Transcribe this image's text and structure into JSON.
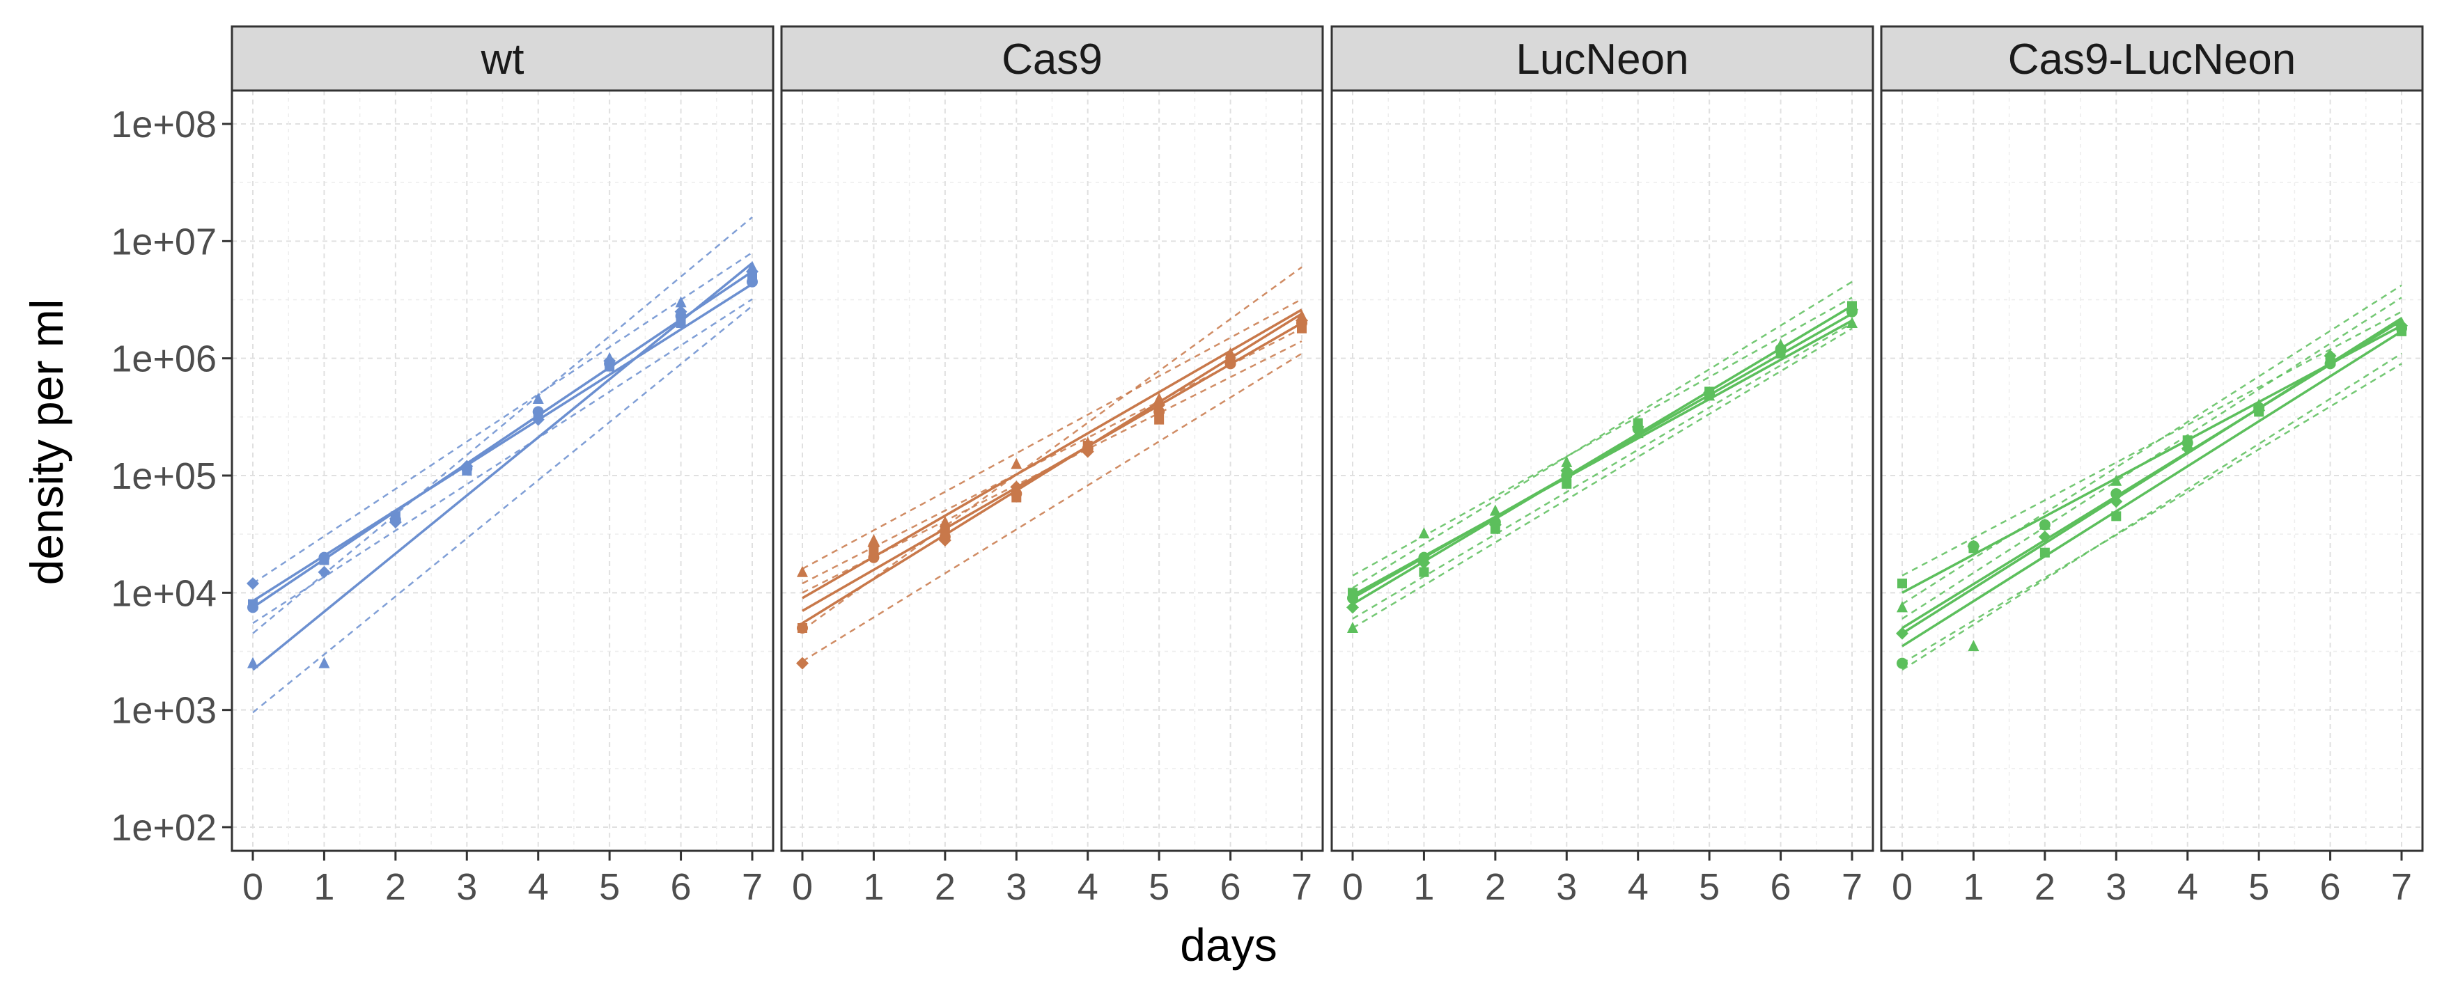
{
  "chart_data": {
    "type": "line",
    "layout": "faceted",
    "xlabel": "days",
    "ylabel": "density per ml",
    "y_scale": "log10",
    "ylim": [
      100,
      100000000
    ],
    "xlim": [
      0,
      7
    ],
    "x_ticks": [
      "0",
      "1",
      "2",
      "3",
      "4",
      "5",
      "6",
      "7"
    ],
    "y_ticks": [
      {
        "value": 100,
        "label": "1e+02"
      },
      {
        "value": 1000,
        "label": "1e+03"
      },
      {
        "value": 10000,
        "label": "1e+04"
      },
      {
        "value": 100000,
        "label": "1e+05"
      },
      {
        "value": 1000000,
        "label": "1e+06"
      },
      {
        "value": 10000000,
        "label": "1e+07"
      },
      {
        "value": 100000000,
        "label": "1e+08"
      }
    ],
    "grid": true,
    "legend": "none",
    "facets": [
      {
        "title": "wt",
        "color": "#6b8fd0",
        "series": [
          {
            "marker": "circle",
            "points": [
              [
                0,
                7500
              ],
              [
                1,
                20000
              ],
              [
                2,
                42000
              ],
              [
                3,
                115000
              ],
              [
                4,
                350000
              ],
              [
                5,
                900000
              ],
              [
                6,
                2300000
              ],
              [
                7,
                4500000
              ]
            ]
          },
          {
            "marker": "square",
            "points": [
              [
                0,
                8000
              ],
              [
                1,
                19000
              ],
              [
                2,
                45000
              ],
              [
                3,
                110000
              ],
              [
                4,
                320000
              ],
              [
                5,
                850000
              ],
              [
                6,
                2000000
              ],
              [
                7,
                5000000
              ]
            ]
          },
          {
            "marker": "triangle",
            "points": [
              [
                0,
                2500
              ],
              [
                1,
                2500
              ],
              [
                4,
                450000
              ],
              [
                5,
                1000000
              ],
              [
                6,
                3000000
              ],
              [
                7,
                6000000
              ]
            ]
          },
          {
            "marker": "diamond",
            "points": [
              [
                0,
                12000
              ],
              [
                1,
                15000
              ],
              [
                2,
                40000
              ],
              [
                3,
                120000
              ],
              [
                4,
                300000
              ],
              [
                5,
                950000
              ],
              [
                6,
                2500000
              ],
              [
                7,
                5500000
              ]
            ]
          }
        ],
        "fits": [
          [
            0,
            7500,
            7,
            5500000
          ],
          [
            0,
            8500,
            7,
            4300000
          ],
          [
            0,
            2200,
            7,
            6500000
          ]
        ],
        "bands": [
          [
            0,
            12000,
            7,
            8000000
          ],
          [
            0,
            5500,
            7,
            3200000
          ],
          [
            0,
            4500,
            7,
            16000000
          ],
          [
            0,
            950,
            7,
            2800000
          ]
        ]
      },
      {
        "title": "Cas9",
        "color": "#c8784a",
        "series": [
          {
            "marker": "circle",
            "points": [
              [
                0,
                5000
              ],
              [
                1,
                20000
              ],
              [
                2,
                30000
              ],
              [
                3,
                70000
              ],
              [
                4,
                170000
              ],
              [
                5,
                350000
              ],
              [
                6,
                900000
              ],
              [
                7,
                2000000
              ]
            ]
          },
          {
            "marker": "square",
            "points": [
              [
                0,
                5000
              ],
              [
                1,
                22000
              ],
              [
                2,
                35000
              ],
              [
                3,
                65000
              ],
              [
                4,
                180000
              ],
              [
                5,
                300000
              ],
              [
                6,
                1000000
              ],
              [
                7,
                1800000
              ]
            ]
          },
          {
            "marker": "triangle",
            "points": [
              [
                0,
                15000
              ],
              [
                1,
                28000
              ],
              [
                2,
                40000
              ],
              [
                3,
                125000
              ],
              [
                4,
                190000
              ],
              [
                5,
                450000
              ],
              [
                6,
                1100000
              ],
              [
                7,
                2300000
              ]
            ]
          },
          {
            "marker": "diamond",
            "points": [
              [
                0,
                2500
              ],
              [
                1,
                25000
              ],
              [
                2,
                28000
              ],
              [
                3,
                80000
              ],
              [
                4,
                160000
              ],
              [
                5,
                400000
              ],
              [
                6,
                950000
              ],
              [
                7,
                2100000
              ]
            ]
          }
        ],
        "fits": [
          [
            0,
            9000,
            7,
            2600000
          ],
          [
            0,
            7000,
            7,
            2000000
          ],
          [
            0,
            5500,
            7,
            2400000
          ]
        ],
        "bands": [
          [
            0,
            16000,
            7,
            3200000
          ],
          [
            0,
            12000,
            7,
            1800000
          ],
          [
            0,
            4800,
            7,
            6000000
          ],
          [
            0,
            2600,
            7,
            1100000
          ],
          [
            0,
            10000,
            7,
            1400000
          ]
        ]
      },
      {
        "title": "LucNeon",
        "color": "#5cbf5c",
        "series": [
          {
            "marker": "circle",
            "points": [
              [
                0,
                9000
              ],
              [
                1,
                20000
              ],
              [
                2,
                40000
              ],
              [
                3,
                100000
              ],
              [
                4,
                250000
              ],
              [
                5,
                500000
              ],
              [
                6,
                1200000
              ],
              [
                7,
                2500000
              ]
            ]
          },
          {
            "marker": "square",
            "points": [
              [
                0,
                10000
              ],
              [
                1,
                15000
              ],
              [
                2,
                35000
              ],
              [
                3,
                85000
              ],
              [
                4,
                280000
              ],
              [
                5,
                520000
              ],
              [
                6,
                1100000
              ],
              [
                7,
                2800000
              ]
            ]
          },
          {
            "marker": "triangle",
            "points": [
              [
                0,
                5000
              ],
              [
                1,
                32000
              ],
              [
                2,
                50000
              ],
              [
                3,
                130000
              ],
              [
                4,
                230000
              ],
              [
                5,
                480000
              ],
              [
                6,
                1300000
              ],
              [
                7,
                2000000
              ]
            ]
          },
          {
            "marker": "diamond",
            "points": [
              [
                0,
                7500
              ],
              [
                1,
                18000
              ],
              [
                2,
                38000
              ],
              [
                3,
                110000
              ],
              [
                4,
                260000
              ],
              [
                5,
                510000
              ],
              [
                6,
                1150000
              ],
              [
                7,
                2600000
              ]
            ]
          }
        ],
        "fits": [
          [
            0,
            9000,
            7,
            2400000
          ],
          [
            0,
            8000,
            7,
            2800000
          ],
          [
            0,
            9500,
            7,
            2100000
          ]
        ],
        "bands": [
          [
            0,
            14000,
            7,
            3300000
          ],
          [
            0,
            6000,
            7,
            2000000
          ],
          [
            0,
            11000,
            7,
            4500000
          ],
          [
            0,
            5000,
            7,
            1800000
          ]
        ]
      },
      {
        "title": "Cas9-LucNeon",
        "color": "#5cbf5c",
        "series": [
          {
            "marker": "circle",
            "points": [
              [
                0,
                2500
              ],
              [
                1,
                25000
              ],
              [
                2,
                38000
              ],
              [
                3,
                70000
              ],
              [
                4,
                190000
              ],
              [
                5,
                380000
              ],
              [
                6,
                900000
              ],
              [
                7,
                1800000
              ]
            ]
          },
          {
            "marker": "square",
            "points": [
              [
                0,
                12000
              ],
              [
                1,
                24000
              ],
              [
                2,
                22000
              ],
              [
                3,
                45000
              ],
              [
                4,
                200000
              ],
              [
                5,
                350000
              ],
              [
                6,
                1000000
              ],
              [
                7,
                1700000
              ]
            ]
          },
          {
            "marker": "triangle",
            "points": [
              [
                0,
                7500
              ],
              [
                1,
                3500
              ],
              [
                2,
                38000
              ],
              [
                3,
                90000
              ],
              [
                4,
                180000
              ],
              [
                5,
                400000
              ],
              [
                6,
                950000
              ],
              [
                7,
                2000000
              ]
            ]
          },
          {
            "marker": "diamond",
            "points": [
              [
                0,
                4500
              ],
              [
                1,
                25000
              ],
              [
                2,
                30000
              ],
              [
                3,
                60000
              ],
              [
                4,
                170000
              ],
              [
                5,
                360000
              ],
              [
                6,
                1050000
              ],
              [
                7,
                1900000
              ]
            ]
          }
        ],
        "fits": [
          [
            0,
            10000,
            7,
            1900000
          ],
          [
            0,
            5000,
            7,
            2100000
          ],
          [
            0,
            3500,
            7,
            1700000
          ],
          [
            0,
            4500,
            7,
            2200000
          ]
        ],
        "bands": [
          [
            0,
            14000,
            7,
            2500000
          ],
          [
            0,
            2200,
            7,
            1100000
          ],
          [
            0,
            8000,
            7,
            4200000
          ],
          [
            0,
            2500,
            7,
            900000
          ],
          [
            0,
            6000,
            7,
            3300000
          ]
        ]
      }
    ]
  }
}
